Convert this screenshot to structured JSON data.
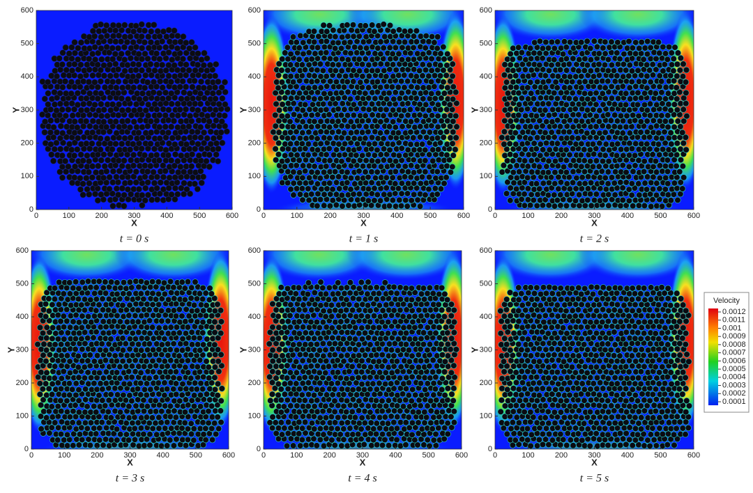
{
  "chart_data": [
    {
      "type": "contour",
      "caption": "t = 0 s",
      "x_label": "X",
      "y_label": "Y",
      "xlim": [
        0,
        600
      ],
      "ylim": [
        0,
        600
      ],
      "xticks": [
        0,
        100,
        200,
        300,
        400,
        500,
        600
      ],
      "yticks": [
        0,
        100,
        200,
        300,
        400,
        500,
        600
      ]
    },
    {
      "type": "contour",
      "caption": "t = 1 s",
      "x_label": "X",
      "y_label": "Y",
      "xlim": [
        0,
        600
      ],
      "ylim": [
        0,
        600
      ],
      "xticks": [
        0,
        100,
        200,
        300,
        400,
        500,
        600
      ],
      "yticks": [
        0,
        100,
        200,
        300,
        400,
        500,
        600
      ]
    },
    {
      "type": "contour",
      "caption": "t = 2 s",
      "x_label": "X",
      "y_label": "Y",
      "xlim": [
        0,
        600
      ],
      "ylim": [
        0,
        600
      ],
      "xticks": [
        0,
        100,
        200,
        300,
        400,
        500,
        600
      ],
      "yticks": [
        0,
        100,
        200,
        300,
        400,
        500,
        600
      ]
    },
    {
      "type": "contour",
      "caption": "t = 3 s",
      "x_label": "X",
      "y_label": "Y",
      "xlim": [
        0,
        600
      ],
      "ylim": [
        0,
        600
      ],
      "xticks": [
        0,
        100,
        200,
        300,
        400,
        500,
        600
      ],
      "yticks": [
        0,
        100,
        200,
        300,
        400,
        500,
        600
      ]
    },
    {
      "type": "contour",
      "caption": "t = 4 s",
      "x_label": "X",
      "y_label": "Y",
      "xlim": [
        0,
        600
      ],
      "ylim": [
        0,
        600
      ],
      "xticks": [
        0,
        100,
        200,
        300,
        400,
        500,
        600
      ],
      "yticks": [
        0,
        100,
        200,
        300,
        400,
        500,
        600
      ]
    },
    {
      "type": "contour",
      "caption": "t = 5 s",
      "x_label": "X",
      "y_label": "Y",
      "xlim": [
        0,
        600
      ],
      "ylim": [
        0,
        600
      ],
      "xticks": [
        0,
        100,
        200,
        300,
        400,
        500,
        600
      ],
      "yticks": [
        0,
        100,
        200,
        300,
        400,
        500,
        600
      ]
    }
  ],
  "colorbar": {
    "title": "Velocity",
    "ticks": [
      0.0012,
      0.0011,
      0.001,
      0.0009,
      0.0008,
      0.0007,
      0.0006,
      0.0005,
      0.0004,
      0.0003,
      0.0002,
      0.0001
    ]
  }
}
